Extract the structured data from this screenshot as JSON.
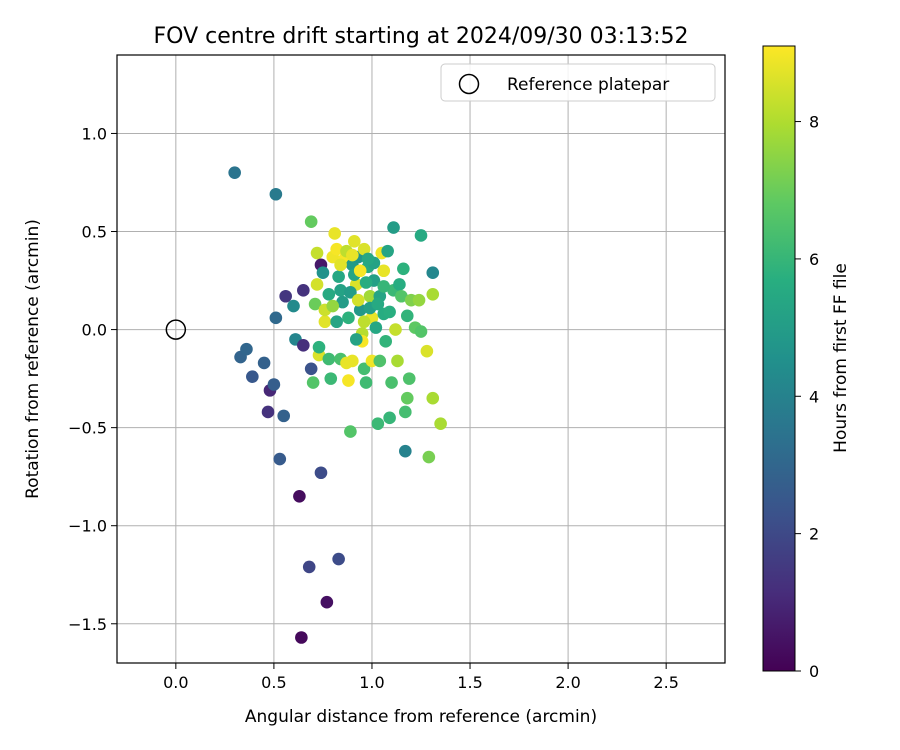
{
  "chart_data": {
    "type": "scatter",
    "title": "FOV centre drift starting at 2024/09/30 03:13:52",
    "xlabel": "Angular distance from reference (arcmin)",
    "ylabel": "Rotation from reference (arcmin)",
    "xlim": [
      -0.3,
      2.8
    ],
    "ylim": [
      -1.7,
      1.4
    ],
    "xticks": [
      0.0,
      0.5,
      1.0,
      1.5,
      2.0,
      2.5
    ],
    "xtick_labels": [
      "0.0",
      "0.5",
      "1.0",
      "1.5",
      "2.0",
      "2.5"
    ],
    "yticks": [
      -1.5,
      -1.0,
      -0.5,
      0.0,
      0.5,
      1.0
    ],
    "ytick_labels": [
      "−1.5",
      "−1.0",
      "−0.5",
      "0.0",
      "0.5",
      "1.0"
    ],
    "grid": true,
    "legend_position": "top-right",
    "legend_label": "Reference platepar",
    "reference_point": {
      "x": 0.0,
      "y": 0.0
    },
    "colorbar": {
      "label": "Hours from first FF file",
      "colormap": "viridis",
      "range": [
        0,
        9.1
      ],
      "ticks": [
        0,
        2,
        4,
        6,
        8
      ],
      "tick_labels": [
        "0",
        "2",
        "4",
        "6",
        "8"
      ]
    },
    "points": [
      {
        "x": 0.3,
        "y": 0.8,
        "c": 3.5
      },
      {
        "x": 0.51,
        "y": 0.69,
        "c": 3.7
      },
      {
        "x": 0.69,
        "y": 0.55,
        "c": 6.9
      },
      {
        "x": 0.33,
        "y": -0.14,
        "c": 2.9
      },
      {
        "x": 0.36,
        "y": -0.1,
        "c": 3.0
      },
      {
        "x": 0.39,
        "y": -0.24,
        "c": 2.5
      },
      {
        "x": 0.45,
        "y": -0.17,
        "c": 2.8
      },
      {
        "x": 0.47,
        "y": -0.42,
        "c": 1.3
      },
      {
        "x": 0.48,
        "y": -0.31,
        "c": 1.0
      },
      {
        "x": 0.5,
        "y": -0.28,
        "c": 2.7
      },
      {
        "x": 0.51,
        "y": 0.06,
        "c": 3.1
      },
      {
        "x": 0.53,
        "y": -0.66,
        "c": 2.6
      },
      {
        "x": 0.55,
        "y": -0.44,
        "c": 2.8
      },
      {
        "x": 0.56,
        "y": 0.17,
        "c": 1.4
      },
      {
        "x": 0.6,
        "y": 0.12,
        "c": 4.3
      },
      {
        "x": 0.61,
        "y": -0.05,
        "c": 4.1
      },
      {
        "x": 0.63,
        "y": -0.85,
        "c": 0.3
      },
      {
        "x": 0.64,
        "y": -1.57,
        "c": 0.2
      },
      {
        "x": 0.65,
        "y": 0.2,
        "c": 1.3
      },
      {
        "x": 0.65,
        "y": -0.08,
        "c": 1.2
      },
      {
        "x": 0.68,
        "y": -1.21,
        "c": 1.9
      },
      {
        "x": 0.69,
        "y": -0.2,
        "c": 2.3
      },
      {
        "x": 0.7,
        "y": -0.27,
        "c": 6.6
      },
      {
        "x": 0.71,
        "y": 0.13,
        "c": 7.0
      },
      {
        "x": 0.72,
        "y": 0.23,
        "c": 8.5
      },
      {
        "x": 0.72,
        "y": 0.39,
        "c": 8.3
      },
      {
        "x": 0.73,
        "y": -0.13,
        "c": 8.6
      },
      {
        "x": 0.73,
        "y": -0.09,
        "c": 5.8
      },
      {
        "x": 0.74,
        "y": 0.33,
        "c": 0.6
      },
      {
        "x": 0.74,
        "y": -0.73,
        "c": 2.1
      },
      {
        "x": 0.75,
        "y": 0.29,
        "c": 4.6
      },
      {
        "x": 0.76,
        "y": 0.04,
        "c": 8.7
      },
      {
        "x": 0.77,
        "y": -1.39,
        "c": 0.4
      },
      {
        "x": 0.78,
        "y": -0.15,
        "c": 6.2
      },
      {
        "x": 0.79,
        "y": -0.25,
        "c": 6.1
      },
      {
        "x": 0.8,
        "y": 0.37,
        "c": 8.9
      },
      {
        "x": 0.81,
        "y": 0.49,
        "c": 8.8
      },
      {
        "x": 0.82,
        "y": 0.41,
        "c": 9.0
      },
      {
        "x": 0.83,
        "y": -1.17,
        "c": 2.1
      },
      {
        "x": 0.83,
        "y": 0.27,
        "c": 5.4
      },
      {
        "x": 0.84,
        "y": 0.2,
        "c": 5.2
      },
      {
        "x": 0.84,
        "y": -0.15,
        "c": 6.4
      },
      {
        "x": 0.86,
        "y": 0.36,
        "c": 9.0
      },
      {
        "x": 0.87,
        "y": -0.17,
        "c": 8.8
      },
      {
        "x": 0.88,
        "y": -0.26,
        "c": 9.0
      },
      {
        "x": 0.89,
        "y": -0.52,
        "c": 6.6
      },
      {
        "x": 0.9,
        "y": 0.33,
        "c": 4.9
      },
      {
        "x": 0.9,
        "y": -0.16,
        "c": 8.8
      },
      {
        "x": 0.91,
        "y": 0.45,
        "c": 8.7
      },
      {
        "x": 0.92,
        "y": 0.23,
        "c": 8.6
      },
      {
        "x": 0.93,
        "y": 0.37,
        "c": 4.7
      },
      {
        "x": 0.94,
        "y": 0.1,
        "c": 4.8
      },
      {
        "x": 0.95,
        "y": -0.02,
        "c": 8.1
      },
      {
        "x": 0.95,
        "y": -0.06,
        "c": 9.0
      },
      {
        "x": 0.96,
        "y": -0.2,
        "c": 6.3
      },
      {
        "x": 0.96,
        "y": 0.41,
        "c": 8.6
      },
      {
        "x": 0.97,
        "y": -0.27,
        "c": 6.2
      },
      {
        "x": 0.98,
        "y": 0.32,
        "c": 5.5
      },
      {
        "x": 0.99,
        "y": 0.17,
        "c": 7.8
      },
      {
        "x": 1.0,
        "y": -0.16,
        "c": 8.9
      },
      {
        "x": 1.0,
        "y": 0.06,
        "c": 8.8
      },
      {
        "x": 1.01,
        "y": 0.25,
        "c": 5.1
      },
      {
        "x": 1.02,
        "y": 0.01,
        "c": 5.4
      },
      {
        "x": 1.03,
        "y": -0.48,
        "c": 6.1
      },
      {
        "x": 1.04,
        "y": 0.17,
        "c": 5.3
      },
      {
        "x": 1.04,
        "y": -0.16,
        "c": 6.5
      },
      {
        "x": 1.05,
        "y": 0.39,
        "c": 8.9
      },
      {
        "x": 1.06,
        "y": 0.3,
        "c": 8.8
      },
      {
        "x": 1.06,
        "y": 0.08,
        "c": 5.6
      },
      {
        "x": 1.07,
        "y": -0.06,
        "c": 5.9
      },
      {
        "x": 1.08,
        "y": 0.4,
        "c": 5.3
      },
      {
        "x": 1.09,
        "y": 0.09,
        "c": 5.7
      },
      {
        "x": 1.09,
        "y": -0.45,
        "c": 6.0
      },
      {
        "x": 1.1,
        "y": -0.27,
        "c": 6.4
      },
      {
        "x": 1.11,
        "y": 0.2,
        "c": 6.1
      },
      {
        "x": 1.11,
        "y": 0.52,
        "c": 5.0
      },
      {
        "x": 1.12,
        "y": 0.0,
        "c": 8.3
      },
      {
        "x": 1.13,
        "y": -0.16,
        "c": 7.9
      },
      {
        "x": 1.14,
        "y": 0.23,
        "c": 5.6
      },
      {
        "x": 1.15,
        "y": 0.17,
        "c": 6.6
      },
      {
        "x": 1.16,
        "y": 0.31,
        "c": 5.8
      },
      {
        "x": 1.17,
        "y": -0.42,
        "c": 6.3
      },
      {
        "x": 1.17,
        "y": -0.62,
        "c": 4.0
      },
      {
        "x": 1.18,
        "y": -0.35,
        "c": 6.9
      },
      {
        "x": 1.18,
        "y": 0.07,
        "c": 5.9
      },
      {
        "x": 1.19,
        "y": -0.25,
        "c": 6.5
      },
      {
        "x": 1.2,
        "y": 0.15,
        "c": 7.3
      },
      {
        "x": 1.22,
        "y": 0.01,
        "c": 6.8
      },
      {
        "x": 1.24,
        "y": 0.15,
        "c": 7.6
      },
      {
        "x": 1.25,
        "y": 0.48,
        "c": 5.5
      },
      {
        "x": 1.25,
        "y": -0.01,
        "c": 6.6
      },
      {
        "x": 1.28,
        "y": -0.11,
        "c": 8.6
      },
      {
        "x": 1.29,
        "y": -0.65,
        "c": 7.2
      },
      {
        "x": 1.31,
        "y": 0.29,
        "c": 4.2
      },
      {
        "x": 1.31,
        "y": 0.18,
        "c": 7.9
      },
      {
        "x": 1.31,
        "y": -0.35,
        "c": 7.9
      },
      {
        "x": 1.35,
        "y": -0.48,
        "c": 7.9
      },
      {
        "x": 0.87,
        "y": 0.4,
        "c": 8.2
      },
      {
        "x": 0.89,
        "y": 0.19,
        "c": 5.0
      },
      {
        "x": 0.91,
        "y": 0.28,
        "c": 5.3
      },
      {
        "x": 0.93,
        "y": 0.15,
        "c": 8.5
      },
      {
        "x": 0.97,
        "y": 0.24,
        "c": 5.6
      },
      {
        "x": 0.99,
        "y": 0.11,
        "c": 5.1
      },
      {
        "x": 1.01,
        "y": 0.34,
        "c": 5.2
      },
      {
        "x": 0.85,
        "y": 0.14,
        "c": 5.0
      },
      {
        "x": 0.82,
        "y": 0.04,
        "c": 5.3
      },
      {
        "x": 0.78,
        "y": 0.18,
        "c": 5.5
      },
      {
        "x": 0.76,
        "y": 0.1,
        "c": 8.4
      },
      {
        "x": 0.8,
        "y": 0.12,
        "c": 7.6
      },
      {
        "x": 0.88,
        "y": 0.06,
        "c": 5.8
      },
      {
        "x": 0.92,
        "y": -0.05,
        "c": 5.2
      },
      {
        "x": 0.96,
        "y": 0.04,
        "c": 8.2
      },
      {
        "x": 1.03,
        "y": 0.13,
        "c": 5.5
      },
      {
        "x": 1.06,
        "y": 0.22,
        "c": 6.0
      },
      {
        "x": 0.84,
        "y": 0.33,
        "c": 8.7
      },
      {
        "x": 0.94,
        "y": 0.3,
        "c": 9.0
      },
      {
        "x": 0.98,
        "y": 0.36,
        "c": 5.4
      },
      {
        "x": 0.9,
        "y": 0.38,
        "c": 8.8
      }
    ]
  }
}
